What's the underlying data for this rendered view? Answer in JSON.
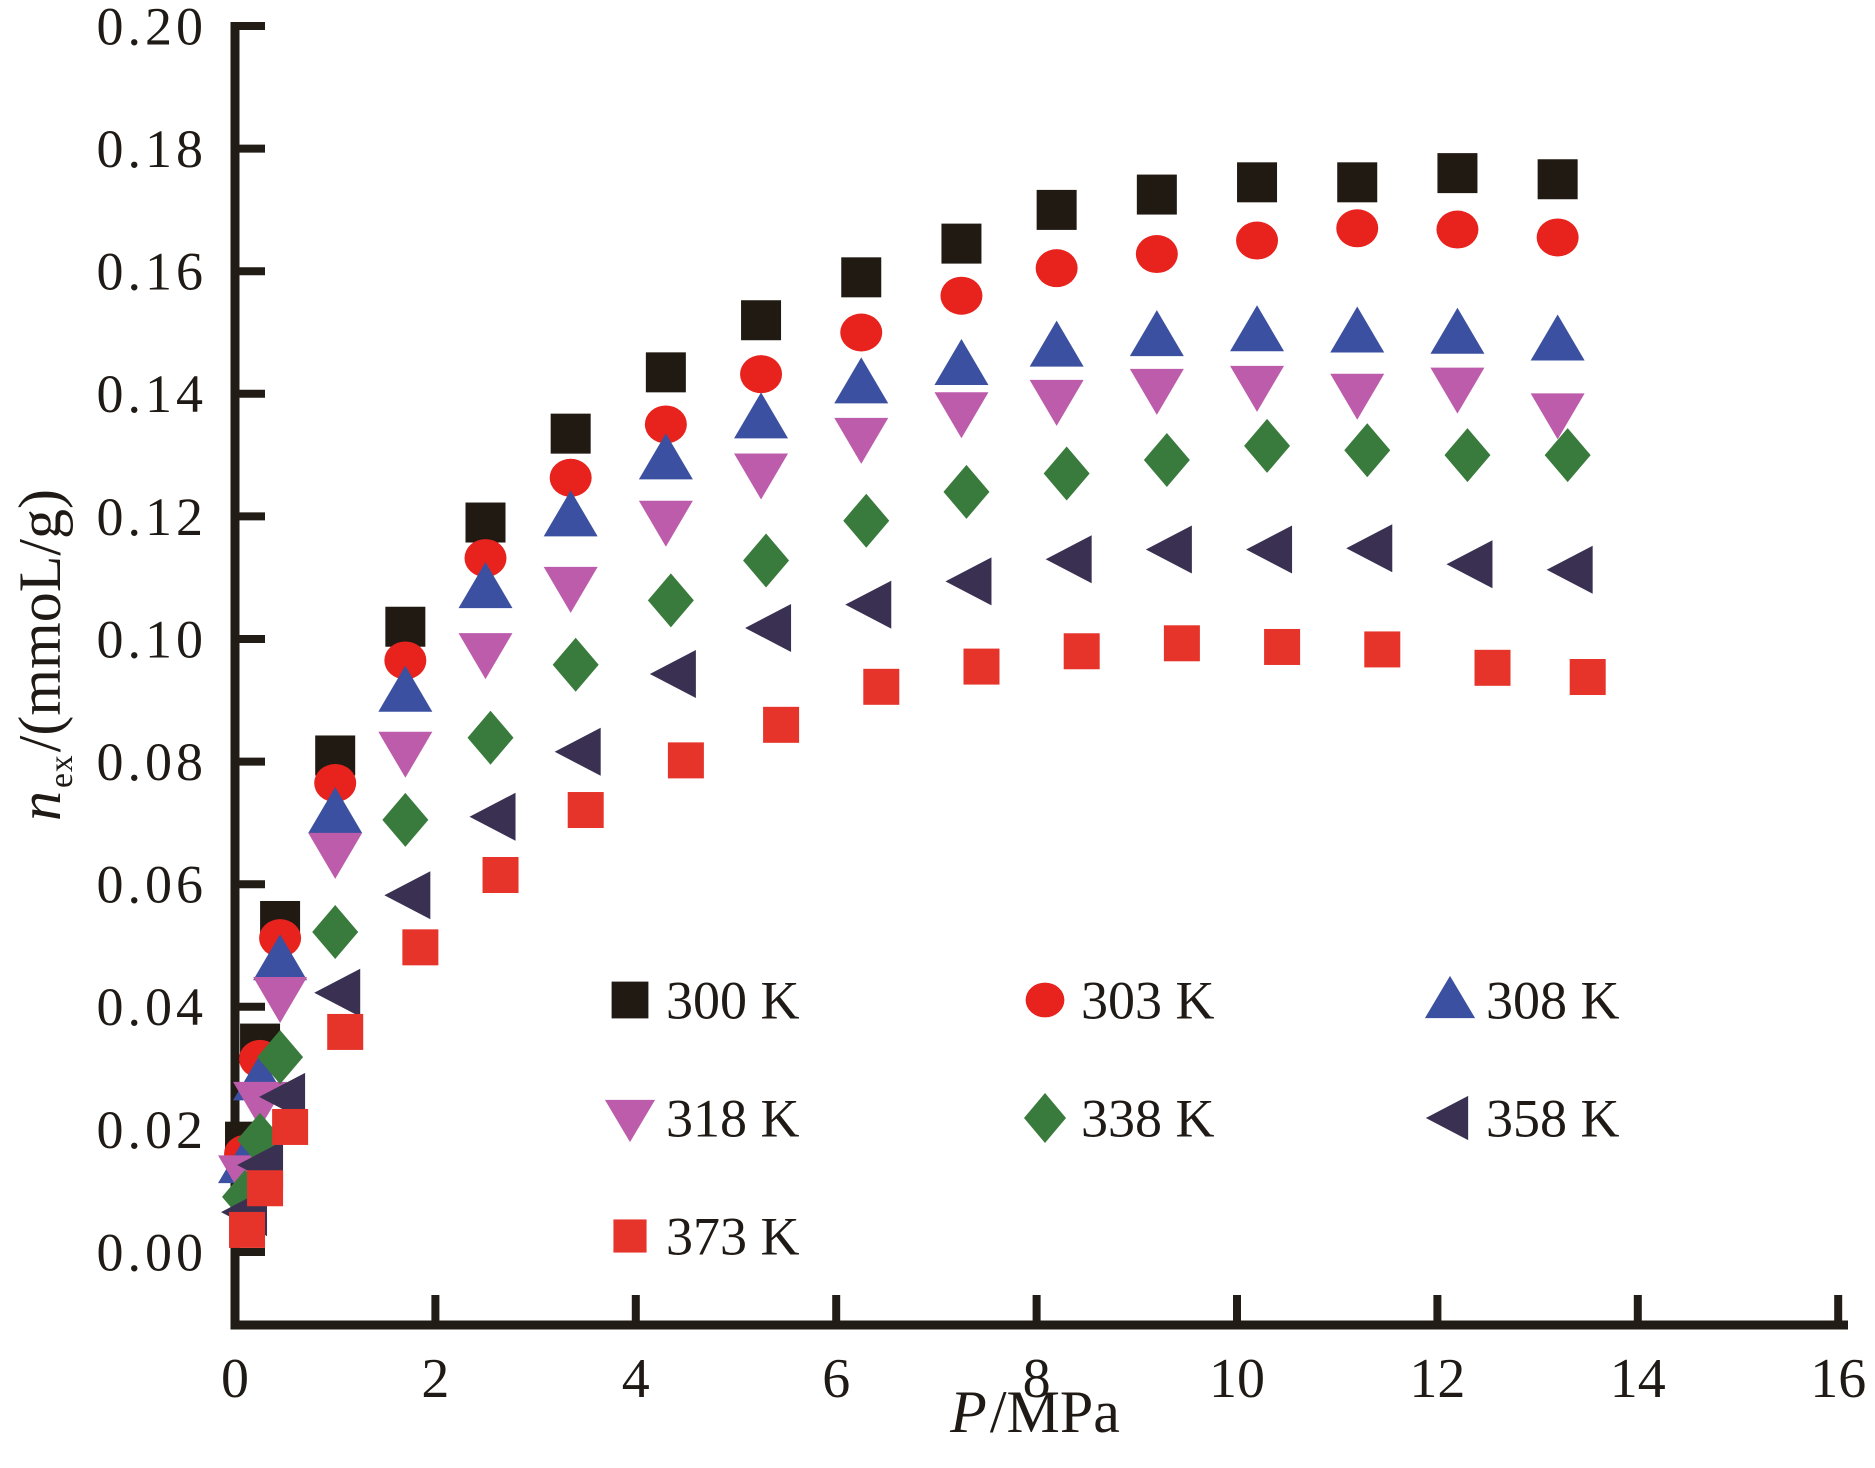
{
  "figure": {
    "background": "#ffffff",
    "axis_color": "#221c16",
    "text_color": "#1f1a15",
    "xlabel": {
      "variable": "P",
      "rest": "/MPa"
    },
    "ylabel": {
      "variable": "n",
      "subscript": "ex",
      "rest": "/(mmoL/g)"
    }
  },
  "chart_data": {
    "type": "scatter",
    "title": "",
    "xlabel": "P/MPa",
    "ylabel": "n_ex/(mmoL/g)",
    "xlim": [
      0,
      16
    ],
    "ylim": [
      0,
      0.2
    ],
    "x_ticks": [
      0,
      2,
      4,
      6,
      8,
      10,
      12,
      14,
      16
    ],
    "y_ticks": [
      0.0,
      0.02,
      0.04,
      0.06,
      0.08,
      0.1,
      0.12,
      0.14,
      0.16,
      0.18,
      0.2
    ],
    "grid": false,
    "legend_position": "inside-bottom, 3 columns",
    "series": [
      {
        "name": "300 K",
        "temperature_k": 300,
        "marker": "square",
        "color": "#211a13",
        "size": 40,
        "legend_row": 0,
        "legend_col": 0,
        "x": [
          0.1,
          0.25,
          0.45,
          1.0,
          1.7,
          2.5,
          3.35,
          4.3,
          5.25,
          6.25,
          7.25,
          8.2,
          9.2,
          10.2,
          11.2,
          12.2,
          13.2
        ],
        "y": [
          0.018,
          0.034,
          0.054,
          0.081,
          0.102,
          0.119,
          0.1335,
          0.1435,
          0.152,
          0.159,
          0.1645,
          0.17,
          0.1725,
          0.1745,
          0.1745,
          0.176,
          0.175
        ]
      },
      {
        "name": "303 K",
        "temperature_k": 303,
        "marker": "circle",
        "color": "#e8231e",
        "size": 40,
        "legend_row": 0,
        "legend_col": 1,
        "x": [
          0.1,
          0.25,
          0.45,
          1.0,
          1.7,
          2.5,
          3.35,
          4.3,
          5.25,
          6.25,
          7.25,
          8.2,
          9.2,
          10.2,
          11.2,
          12.2,
          13.2
        ],
        "y": [
          0.016,
          0.0315,
          0.0512,
          0.0765,
          0.0965,
          0.1132,
          0.1263,
          0.135,
          0.1432,
          0.15,
          0.156,
          0.1605,
          0.1628,
          0.165,
          0.167,
          0.1668,
          0.1655
        ]
      },
      {
        "name": "308 K",
        "temperature_k": 308,
        "marker": "triangle-up",
        "color": "#3b50a0",
        "size": 48,
        "legend_row": 0,
        "legend_col": 2,
        "x": [
          0.1,
          0.25,
          0.45,
          1.0,
          1.7,
          2.5,
          3.35,
          4.3,
          5.25,
          6.25,
          7.25,
          8.2,
          9.2,
          10.2,
          11.2,
          12.2,
          13.2
        ],
        "y": [
          0.0145,
          0.028,
          0.0476,
          0.0716,
          0.0914,
          0.1083,
          0.12,
          0.1293,
          0.136,
          0.1417,
          0.1447,
          0.1477,
          0.1494,
          0.1502,
          0.15,
          0.1498,
          0.1487
        ]
      },
      {
        "name": "318 K",
        "temperature_k": 318,
        "marker": "triangle-down",
        "color": "#bd5cab",
        "size": 48,
        "legend_row": 1,
        "legend_col": 0,
        "x": [
          0.1,
          0.25,
          0.45,
          1.0,
          1.7,
          2.5,
          3.35,
          4.3,
          5.25,
          6.25,
          7.25,
          8.2,
          9.2,
          10.2,
          11.2,
          12.2,
          13.2
        ],
        "y": [
          0.0125,
          0.0245,
          0.0416,
          0.0651,
          0.0816,
          0.0977,
          0.1085,
          0.1193,
          0.127,
          0.1328,
          0.137,
          0.139,
          0.1408,
          0.1413,
          0.14,
          0.141,
          0.1368
        ]
      },
      {
        "name": "338 K",
        "temperature_k": 338,
        "marker": "diamond",
        "color": "#397b3c",
        "size": 50,
        "legend_row": 1,
        "legend_col": 1,
        "x": [
          0.1,
          0.25,
          0.45,
          1.0,
          1.7,
          2.55,
          3.4,
          4.35,
          5.3,
          6.3,
          7.3,
          8.3,
          9.3,
          10.3,
          11.3,
          12.3,
          13.3
        ],
        "y": [
          0.009,
          0.0183,
          0.0318,
          0.0522,
          0.0705,
          0.0839,
          0.0958,
          0.1063,
          0.1128,
          0.1193,
          0.124,
          0.127,
          0.1292,
          0.1315,
          0.1308,
          0.13,
          0.13
        ]
      },
      {
        "name": "358 K",
        "temperature_k": 358,
        "marker": "triangle-left",
        "color": "#393052",
        "size": 46,
        "legend_row": 1,
        "legend_col": 2,
        "x": [
          0.12,
          0.28,
          0.5,
          1.05,
          1.75,
          2.6,
          3.45,
          4.4,
          5.35,
          6.35,
          7.35,
          8.35,
          9.35,
          10.35,
          11.35,
          12.35,
          13.35
        ],
        "y": [
          0.0065,
          0.0142,
          0.0253,
          0.0423,
          0.0582,
          0.071,
          0.0816,
          0.0943,
          0.1018,
          0.1056,
          0.1094,
          0.113,
          0.1146,
          0.1146,
          0.1148,
          0.1122,
          0.1113
        ]
      },
      {
        "name": "373 K",
        "temperature_k": 373,
        "marker": "square",
        "color": "#e6342b",
        "size": 36,
        "legend_row": 2,
        "legend_col": 0,
        "x": [
          0.12,
          0.3,
          0.55,
          1.1,
          1.85,
          2.65,
          3.5,
          4.5,
          5.45,
          6.45,
          7.45,
          8.45,
          9.45,
          10.45,
          11.45,
          12.55,
          13.5
        ],
        "y": [
          0.0036,
          0.0104,
          0.0204,
          0.0359,
          0.0497,
          0.0615,
          0.0721,
          0.0802,
          0.086,
          0.0922,
          0.0955,
          0.098,
          0.0993,
          0.0987,
          0.0983,
          0.0953,
          0.0938
        ]
      }
    ]
  }
}
